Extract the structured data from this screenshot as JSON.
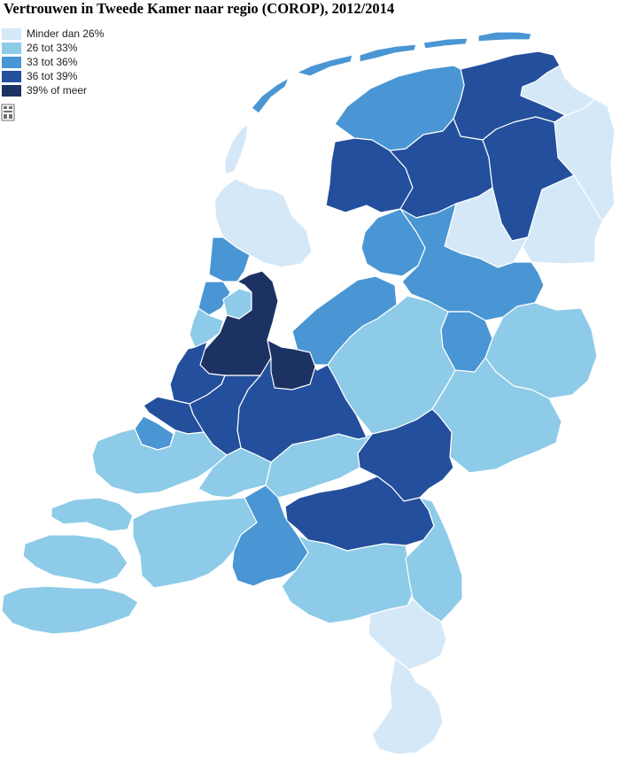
{
  "title": "Vertrouwen in Tweede Kamer naar regio (COROP), 2012/2014",
  "legend": [
    {
      "label": "Minder dan 26%",
      "color": "#d4e8f8"
    },
    {
      "label": "26 tot 33%",
      "color": "#8dcbe8"
    },
    {
      "label": "33 tot 36%",
      "color": "#4a96d4"
    },
    {
      "label": "36 tot 39%",
      "color": "#234f9c"
    },
    {
      "label": "39% of meer",
      "color": "#1b3263"
    }
  ],
  "logo_icon": "cbs-logo-icon",
  "regions": [
    {
      "id": "oost-groningen",
      "class": 0
    },
    {
      "id": "delfzijl-en-omgeving",
      "class": 0
    },
    {
      "id": "overig-groningen",
      "class": 3
    },
    {
      "id": "noord-friesland",
      "class": 2
    },
    {
      "id": "zuidwest-friesland",
      "class": 3
    },
    {
      "id": "zuidoost-friesland",
      "class": 3
    },
    {
      "id": "noord-drenthe",
      "class": 3
    },
    {
      "id": "zuidoost-drenthe",
      "class": 0
    },
    {
      "id": "zuidwest-drenthe",
      "class": 0
    },
    {
      "id": "noord-overijssel",
      "class": 2
    },
    {
      "id": "zuidwest-overijssel",
      "class": 2
    },
    {
      "id": "twente",
      "class": 1
    },
    {
      "id": "veluwe",
      "class": 1
    },
    {
      "id": "achterhoek",
      "class": 1
    },
    {
      "id": "arnhem-nijmegen",
      "class": 3
    },
    {
      "id": "zuidwest-gelderland",
      "class": 1
    },
    {
      "id": "utrecht",
      "class": 3
    },
    {
      "id": "kop-van-noord-holland",
      "class": 0
    },
    {
      "id": "alkmaar-en-omgeving",
      "class": 2
    },
    {
      "id": "ijmond",
      "class": 2
    },
    {
      "id": "agglomeratie-haarlem",
      "class": 1
    },
    {
      "id": "zaanstreek",
      "class": 1
    },
    {
      "id": "groot-amsterdam",
      "class": 4
    },
    {
      "id": "het-gooi-en-vechtstreek",
      "class": 4
    },
    {
      "id": "agglomeratie-leiden",
      "class": 3
    },
    {
      "id": "agglomeratie-s-gravenhage",
      "class": 3
    },
    {
      "id": "delft-en-westland",
      "class": 2
    },
    {
      "id": "oost-zuid-holland",
      "class": 3
    },
    {
      "id": "groot-rijnmond",
      "class": 1
    },
    {
      "id": "zuidoost-zuid-holland",
      "class": 1
    },
    {
      "id": "flevoland",
      "class": 2
    },
    {
      "id": "zeeuwsch-vlaanderen",
      "class": 1
    },
    {
      "id": "overig-zeeland",
      "class": 1
    },
    {
      "id": "west-noord-brabant",
      "class": 1
    },
    {
      "id": "midden-noord-brabant",
      "class": 2
    },
    {
      "id": "noordoost-noord-brabant",
      "class": 3
    },
    {
      "id": "zuidoost-noord-brabant",
      "class": 1
    },
    {
      "id": "noord-limburg",
      "class": 1
    },
    {
      "id": "midden-limburg",
      "class": 0
    },
    {
      "id": "zuid-limburg",
      "class": 0
    },
    {
      "id": "wadden-eilanden",
      "class": 2
    },
    {
      "id": "texel",
      "class": 0
    }
  ]
}
